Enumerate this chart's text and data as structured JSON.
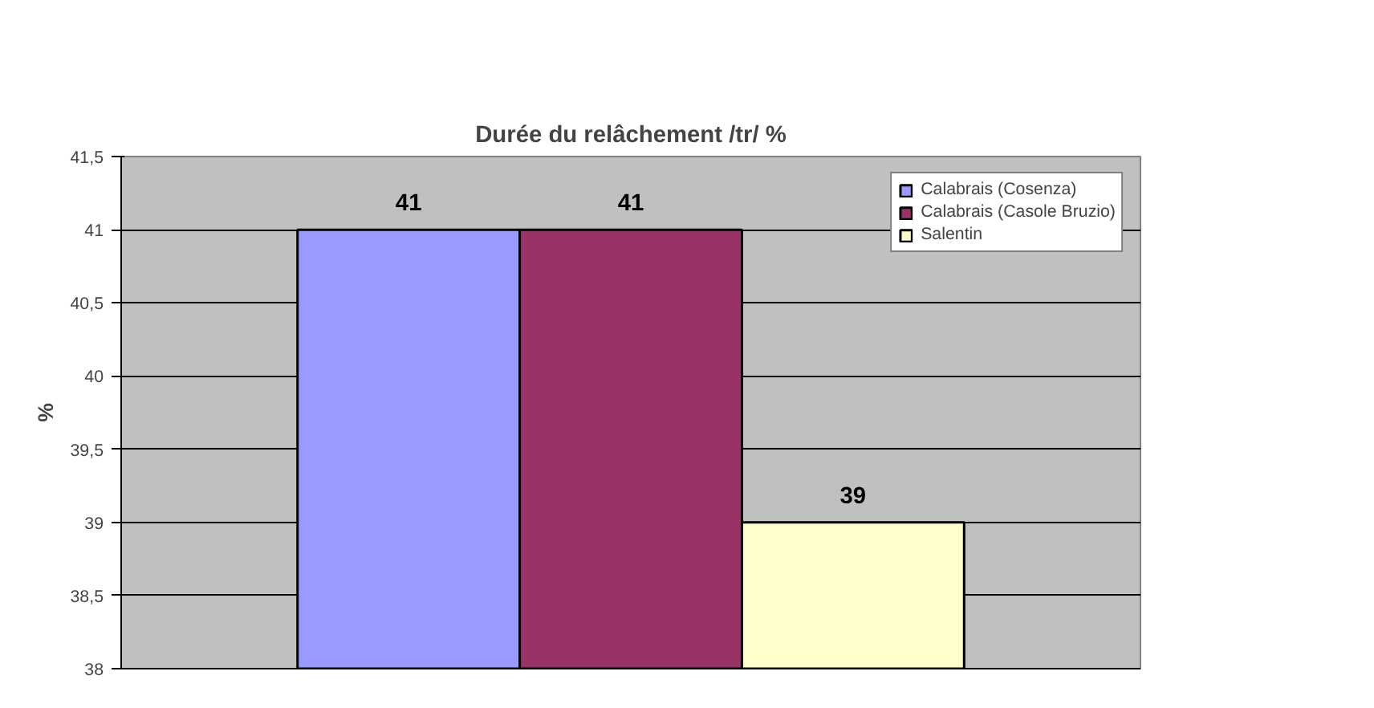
{
  "chart_data": {
    "type": "bar",
    "title": "Durée du relâchement /tr/ %",
    "ylabel": "%",
    "categories": [
      null
    ],
    "series": [
      {
        "name": "Calabrais (Cosenza)",
        "color": "#9999ff",
        "values": [
          41
        ]
      },
      {
        "name": "Calabrais (Casole Bruzio)",
        "color": "#993366",
        "values": [
          41
        ]
      },
      {
        "name": "Salentin",
        "color": "#ffffcc",
        "values": [
          39
        ]
      }
    ],
    "ylim": [
      38,
      41.5
    ],
    "yticks": [
      38,
      {
        "value": 38.5,
        "label": "38,5"
      },
      39,
      {
        "value": 39.5,
        "label": "39,5"
      },
      40,
      {
        "value": 40.5,
        "label": "40,5"
      },
      41,
      {
        "value": 41.5,
        "label": "41,5"
      }
    ],
    "grid": "y",
    "legend": "top right",
    "data_labels": true
  }
}
